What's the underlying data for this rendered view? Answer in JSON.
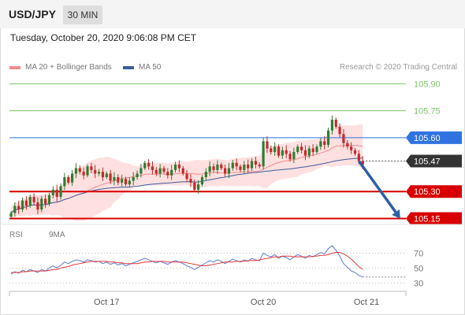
{
  "header": {
    "symbol": "USD/JPY",
    "timeframe": "30 MIN"
  },
  "datetime": "Tuesday, October 20, 2020 9:06:08 PM CET",
  "legend": {
    "ma20_label": "MA 20 + Bollinger Bands",
    "ma50_label": "MA 50",
    "credit": "Research © 2020 Trading Central"
  },
  "rsi_legend": {
    "rsi_label": "RSI",
    "ma9_label": "9MA"
  },
  "colors": {
    "bull_candle": "#2e7d32",
    "bear_candle": "#c62828",
    "bollinger_fill": "#ffd6d6",
    "ma20": "#f28b8b",
    "ma50": "#3a5a9a",
    "resistance_green": "#7cc36a",
    "pivot_blue": "#2f73e0",
    "support_red": "#d80000",
    "rsi_line": "#5b7bd5",
    "rsi_ma": "#e53935",
    "arrow": "#2d5fa3"
  },
  "chart_data": {
    "type": "candlestick",
    "y_range": [
      105.13,
      105.95
    ],
    "levels": [
      {
        "value": 105.9,
        "label": "105.90",
        "kind": "resistance"
      },
      {
        "value": 105.75,
        "label": "105.75",
        "kind": "resistance"
      },
      {
        "value": 105.6,
        "label": "105.60",
        "kind": "pivot"
      },
      {
        "value": 105.47,
        "label": "105.47",
        "kind": "last_price"
      },
      {
        "value": 105.3,
        "label": "105.30",
        "kind": "support"
      },
      {
        "value": 105.15,
        "label": "105.15",
        "kind": "support"
      }
    ],
    "x_ticks": [
      {
        "index": 25,
        "label": "Oct 17"
      },
      {
        "index": 66,
        "label": "Oct 20"
      },
      {
        "index": 93,
        "label": "Oct 21"
      }
    ],
    "forecast_arrow": {
      "from_index": 91,
      "from_value": 105.47,
      "to_index": 101,
      "to_value": 105.15
    },
    "candles_close": [
      105.18,
      105.22,
      105.2,
      105.25,
      105.22,
      105.27,
      105.24,
      105.2,
      105.26,
      105.23,
      105.28,
      105.31,
      105.27,
      105.33,
      105.38,
      105.35,
      105.4,
      105.43,
      105.41,
      105.39,
      105.44,
      105.42,
      105.4,
      105.41,
      105.38,
      105.4,
      105.36,
      105.38,
      105.35,
      105.37,
      105.34,
      105.36,
      105.38,
      105.4,
      105.43,
      105.46,
      105.44,
      105.42,
      105.4,
      105.43,
      105.41,
      105.39,
      105.42,
      105.45,
      105.43,
      105.4,
      105.37,
      105.35,
      105.31,
      105.34,
      105.38,
      105.41,
      105.44,
      105.42,
      105.45,
      105.43,
      105.4,
      105.43,
      105.46,
      105.44,
      105.42,
      105.45,
      105.43,
      105.47,
      105.45,
      105.44,
      105.58,
      105.54,
      105.52,
      105.55,
      105.5,
      105.53,
      105.51,
      105.48,
      105.52,
      105.55,
      105.53,
      105.5,
      105.54,
      105.52,
      105.55,
      105.58,
      105.56,
      105.64,
      105.7,
      105.66,
      105.62,
      105.57,
      105.55,
      105.53,
      105.51,
      105.47,
      105.45
    ],
    "rsi": [
      42,
      45,
      43,
      47,
      45,
      48,
      46,
      44,
      48,
      46,
      50,
      53,
      50,
      54,
      58,
      56,
      59,
      61,
      60,
      58,
      61,
      60,
      58,
      59,
      56,
      58,
      55,
      57,
      54,
      56,
      53,
      55,
      57,
      59,
      61,
      63,
      61,
      59,
      57,
      59,
      57,
      55,
      58,
      60,
      58,
      56,
      53,
      51,
      48,
      51,
      54,
      57,
      60,
      58,
      61,
      59,
      56,
      59,
      62,
      60,
      58,
      61,
      59,
      63,
      61,
      60,
      70,
      67,
      65,
      68,
      63,
      66,
      64,
      61,
      65,
      68,
      66,
      63,
      67,
      65,
      68,
      71,
      69,
      76,
      80,
      74,
      66,
      56,
      51,
      46,
      44,
      40,
      38
    ],
    "rsi_ma": [
      44,
      44,
      44,
      45,
      45,
      46,
      46,
      46,
      46,
      46,
      47,
      48,
      48,
      50,
      51,
      52,
      54,
      55,
      56,
      57,
      58,
      59,
      59,
      59,
      59,
      59,
      58,
      58,
      57,
      57,
      56,
      56,
      56,
      56,
      57,
      58,
      58,
      59,
      59,
      59,
      59,
      58,
      58,
      58,
      58,
      58,
      57,
      56,
      55,
      54,
      53,
      53,
      54,
      55,
      56,
      57,
      58,
      58,
      58,
      59,
      59,
      59,
      60,
      60,
      60,
      61,
      62,
      63,
      64,
      65,
      65,
      66,
      66,
      66,
      65,
      65,
      65,
      65,
      65,
      66,
      66,
      67,
      67,
      68,
      70,
      71,
      71,
      69,
      66,
      62,
      57,
      52,
      48
    ],
    "rsi_y_range": [
      25,
      80
    ],
    "rsi_ticks": [
      {
        "value": 70,
        "label": "70"
      },
      {
        "value": 50,
        "label": "50"
      },
      {
        "value": 30,
        "label": "30"
      }
    ]
  }
}
